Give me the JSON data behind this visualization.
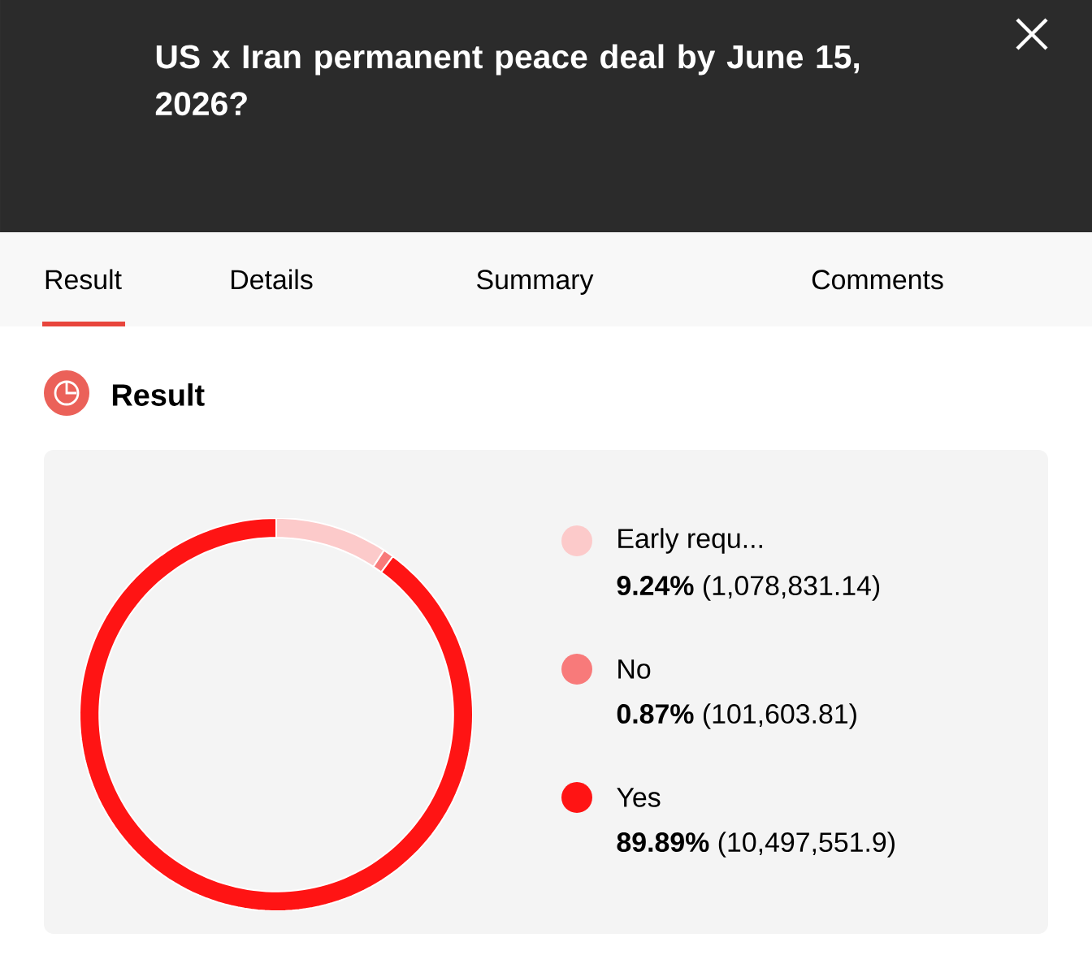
{
  "chart_data": {
    "type": "donut",
    "title": "US x Iran permanent peace deal by June 15, 2026?",
    "subtitle": "Result",
    "annotations": [
      "Result",
      "Details",
      "Summary",
      "Comments"
    ],
    "categories": [
      "Early requ...",
      "No",
      "Yes"
    ],
    "values": [
      9.24,
      0.87,
      89.89
    ],
    "colors": [
      "#fccaca",
      "#f87a7a",
      "#ff1414"
    ],
    "value_labels": [
      "**9.24%** (1,078,831.14)",
      "**0.87%** (101,603.81)",
      "**89.89%** (10,497,551.9)"
    ],
    "legend": "right"
  }
}
